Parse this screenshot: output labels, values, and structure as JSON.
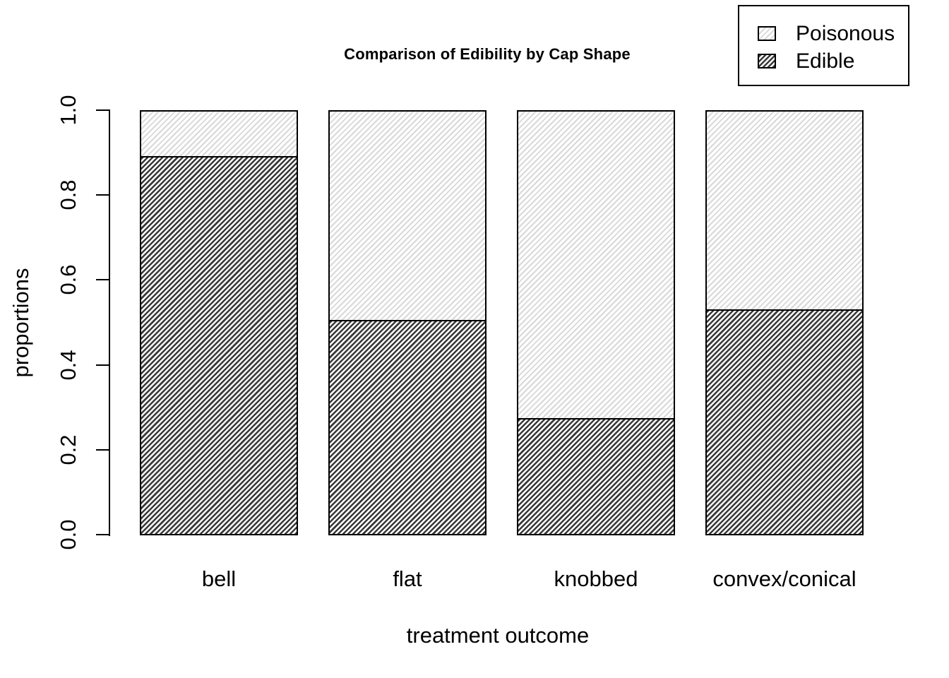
{
  "chart_data": {
    "type": "bar",
    "stacked": true,
    "title": "Comparison of Edibility by Cap Shape",
    "xlabel": "treatment outcome",
    "ylabel": "proportions",
    "categories": [
      "bell",
      "flat",
      "knobbed",
      "convex/conical"
    ],
    "series": [
      {
        "name": "Poisonous",
        "values": [
          0.106,
          0.494,
          0.725,
          0.468
        ],
        "hatch": "light-sparse-diagonal-45deg"
      },
      {
        "name": "Edible",
        "values": [
          0.894,
          0.506,
          0.275,
          0.532
        ],
        "hatch": "dark-dense-diagonal-45deg"
      }
    ],
    "stack_bottom": "Edible",
    "ylim": [
      0,
      1
    ],
    "yticks": [
      "0.0",
      "0.2",
      "0.4",
      "0.6",
      "0.8",
      "1.0"
    ],
    "grid": false,
    "legend_position": "top-right"
  },
  "legend": {
    "items": [
      {
        "label": "Poisonous"
      },
      {
        "label": "Edible"
      }
    ]
  },
  "colors": {
    "background": "#ffffff",
    "text": "#000000",
    "axis": "#000000",
    "bar_border": "#000000",
    "poisonous_hatch_line": "#d8d8d8",
    "edible_hatch_line": "#383838",
    "hatch_background": "#ffffff"
  }
}
